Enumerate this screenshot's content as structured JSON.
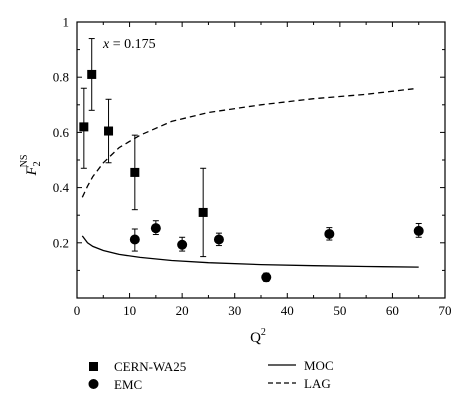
{
  "chart_data": {
    "type": "scatter",
    "xlabel": "Q",
    "xlabel_sup": "2",
    "ylabel": "F",
    "ylabel_sub": "2",
    "ylabel_sup": "NS",
    "xlim": [
      0,
      70
    ],
    "ylim": [
      0,
      1
    ],
    "xticks": [
      "0",
      "10",
      "20",
      "30",
      "40",
      "50",
      "60",
      "70"
    ],
    "yticks": [
      "0.2",
      "0.4",
      "0.6",
      "0.8",
      "1"
    ],
    "annotation": {
      "var": "x",
      "text": " = 0.175"
    },
    "grid": false,
    "legend_position": "bottom",
    "series": [
      {
        "name": "CERN-WA25",
        "kind": "points",
        "marker": "square",
        "points": [
          {
            "x": 1.3,
            "y": 0.62,
            "lo": 0.47,
            "hi": 0.76
          },
          {
            "x": 2.8,
            "y": 0.81,
            "lo": 0.68,
            "hi": 0.94
          },
          {
            "x": 6.0,
            "y": 0.605,
            "lo": 0.49,
            "hi": 0.72
          },
          {
            "x": 11.0,
            "y": 0.455,
            "lo": 0.32,
            "hi": 0.59
          },
          {
            "x": 24.0,
            "y": 0.31,
            "lo": 0.15,
            "hi": 0.47
          }
        ]
      },
      {
        "name": "EMC",
        "kind": "points",
        "marker": "circle",
        "points": [
          {
            "x": 11.0,
            "y": 0.212,
            "lo": 0.17,
            "hi": 0.25
          },
          {
            "x": 15.0,
            "y": 0.253,
            "lo": 0.23,
            "hi": 0.28
          },
          {
            "x": 20.0,
            "y": 0.193,
            "lo": 0.17,
            "hi": 0.22
          },
          {
            "x": 27.0,
            "y": 0.212,
            "lo": 0.19,
            "hi": 0.235
          },
          {
            "x": 36.0,
            "y": 0.075,
            "lo": 0.06,
            "hi": 0.09
          },
          {
            "x": 48.0,
            "y": 0.232,
            "lo": 0.21,
            "hi": 0.255
          },
          {
            "x": 65.0,
            "y": 0.243,
            "lo": 0.22,
            "hi": 0.27
          }
        ]
      },
      {
        "name": "MOC",
        "kind": "line",
        "dash": "solid",
        "x": [
          1,
          2,
          3,
          5,
          8,
          12,
          18,
          25,
          35,
          45,
          55,
          65
        ],
        "y": [
          0.225,
          0.2,
          0.187,
          0.172,
          0.158,
          0.147,
          0.136,
          0.128,
          0.121,
          0.117,
          0.114,
          0.112
        ]
      },
      {
        "name": "LAG",
        "kind": "line",
        "dash": "dashed",
        "x": [
          1,
          2,
          3,
          5,
          8,
          12,
          18,
          25,
          35,
          45,
          55,
          64
        ],
        "y": [
          0.365,
          0.405,
          0.44,
          0.49,
          0.545,
          0.59,
          0.64,
          0.672,
          0.7,
          0.722,
          0.738,
          0.758
        ]
      }
    ]
  }
}
